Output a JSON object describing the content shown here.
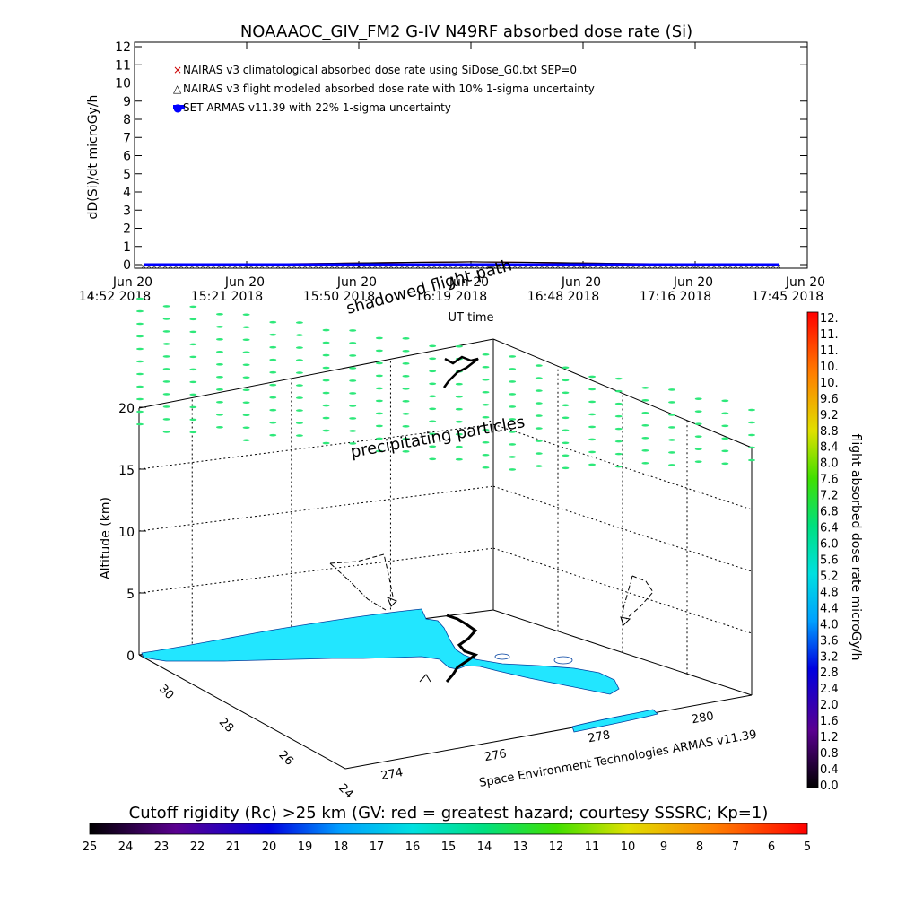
{
  "chart_data": [
    {
      "type": "line",
      "title": "NOAAAOC_GIV_FM2 G-IV    N49RF   absorbed dose rate (Si)",
      "ylabel": "dD(Si)/dt microGy/h",
      "xlabel": "UT time",
      "ylim": [
        0,
        12
      ],
      "yticks": [
        "0",
        "1",
        "2",
        "3",
        "4",
        "5",
        "6",
        "7",
        "8",
        "9",
        "10",
        "11",
        "12"
      ],
      "xticks": [
        {
          "l1": "Jun 20",
          "l2": "14:52 2018"
        },
        {
          "l1": "Jun 20",
          "l2": "15:21 2018"
        },
        {
          "l1": "Jun 20",
          "l2": "15:50 2018"
        },
        {
          "l1": "Jun 20",
          "l2": "16:19 2018"
        },
        {
          "l1": "Jun 20",
          "l2": "16:48 2018"
        },
        {
          "l1": "Jun 20",
          "l2": "17:16 2018"
        },
        {
          "l1": "Jun 20",
          "l2": "17:45 2018"
        }
      ],
      "legend": [
        {
          "marker": "×",
          "color": "#cc0000",
          "label": "NAIRAS v3 climatological absorbed dose rate using SiDose_G0.txt SEP=0"
        },
        {
          "marker": "△",
          "color": "#000000",
          "label": "NAIRAS v3 flight modeled absorbed dose rate with 10% 1-sigma uncertainty"
        },
        {
          "marker": "●",
          "color": "#0000ff",
          "label": "SET ARMAS v11.39 with 22% 1-sigma uncertainty"
        }
      ],
      "series": [
        {
          "name": "NAIRAS v3 climatological absorbed dose rate using SiDose_G0.txt SEP=0",
          "x_fraction": [
            0.0,
            0.25,
            0.4,
            0.5,
            0.6,
            0.75,
            0.97
          ],
          "values": [
            0.0,
            0.05,
            0.12,
            0.15,
            0.12,
            0.05,
            0.0
          ]
        },
        {
          "name": "NAIRAS v3 flight modeled absorbed dose rate with 10% 1-sigma uncertainty",
          "x_fraction": [
            0.0,
            0.25,
            0.4,
            0.5,
            0.6,
            0.75,
            0.97
          ],
          "values": [
            0.0,
            0.05,
            0.12,
            0.15,
            0.12,
            0.05,
            0.0
          ]
        },
        {
          "name": "SET ARMAS v11.39 with 22% 1-sigma uncertainty",
          "x_fraction": [
            0.0,
            0.97
          ],
          "values": [
            0.0,
            0.0
          ]
        }
      ]
    },
    {
      "type": "scatter",
      "ylabel": "Altitude (km)",
      "zticks": [
        "0",
        "5",
        "10",
        "15",
        "20"
      ],
      "lat_ticks": [
        "30",
        "28",
        "26",
        "24"
      ],
      "lon_ticks": [
        "274",
        "276",
        "278",
        "280"
      ],
      "annotations": [
        "shadowed flight path",
        "precipitating particles"
      ],
      "credit": "Space Environment Technologies ARMAS v11.39"
    },
    {
      "type": "heatmap",
      "label": "flight absorbed dose rate microGy/h",
      "ticks": [
        "0.0",
        "0.4",
        "0.8",
        "1.2",
        "1.6",
        "2.0",
        "2.4",
        "2.8",
        "3.2",
        "3.6",
        "4.0",
        "4.4",
        "4.8",
        "5.2",
        "5.6",
        "6.0",
        "6.4",
        "6.8",
        "7.2",
        "7.6",
        "8.0",
        "8.4",
        "8.8",
        "9.2",
        "9.6",
        "10.",
        "10.",
        "11.",
        "11.",
        "12."
      ]
    },
    {
      "type": "heatmap",
      "label": "Cutoff rigidity (Rc) >25 km (GV: red = greatest hazard; courtesy SSSRC; Kp=1)",
      "ticks": [
        "25",
        "24",
        "23",
        "22",
        "21",
        "20",
        "19",
        "18",
        "17",
        "16",
        "15",
        "14",
        "13",
        "12",
        "11",
        "10",
        "9",
        "8",
        "7",
        "6",
        "5"
      ]
    }
  ],
  "colors": {
    "precip": "#2ee87a",
    "land": "#22e6ff",
    "red": "#cc0000",
    "blue": "#0000ff"
  }
}
